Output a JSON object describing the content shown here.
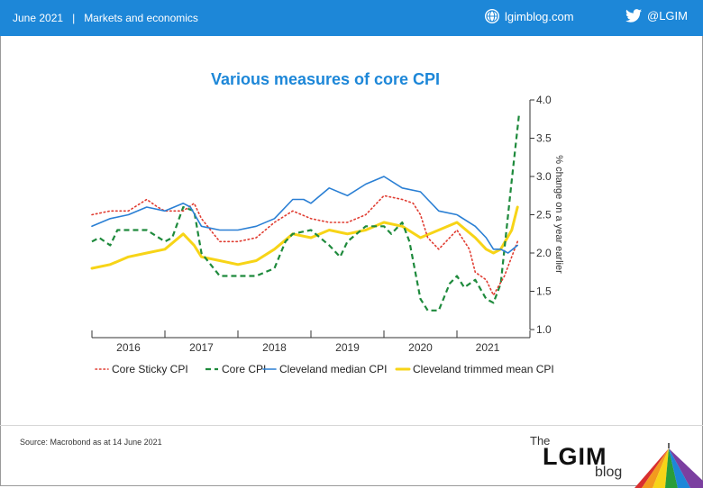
{
  "header": {
    "date": "June 2021",
    "separator": "|",
    "section": "Markets and economics",
    "site": "lgimblog.com",
    "handle": "@LGIM"
  },
  "footer": {
    "source": "Source: Macrobond as at 14 June 2021",
    "logo_the": "The",
    "logo_main": "LGIM",
    "logo_blog": "blog"
  },
  "colors": {
    "header_bg": "#1d87d8",
    "title": "#1d87d8",
    "core_sticky": "#e03c31",
    "core": "#1e8a3c",
    "median": "#2a7fd4",
    "trimmed": "#f7d417"
  },
  "chart_data": {
    "type": "line",
    "title": "Various measures of core CPI",
    "ylabel": "% change on a year earlier",
    "ylim": [
      1.0,
      4.0
    ],
    "yticks": [
      "1.0",
      "1.5",
      "2.0",
      "2.5",
      "3.0",
      "3.5",
      "4.0"
    ],
    "y_axis_position": "right",
    "xlim": [
      2015.5,
      2021.5
    ],
    "year_labels": [
      {
        "label": "2016",
        "x": 2016.0
      },
      {
        "label": "2017",
        "x": 2017.0
      },
      {
        "label": "2018",
        "x": 2018.0
      },
      {
        "label": "2019",
        "x": 2019.0
      },
      {
        "label": "2020",
        "x": 2020.0
      },
      {
        "label": "2021",
        "x": 2020.92
      }
    ],
    "grid": false,
    "legend_position": "bottom",
    "series": [
      {
        "name": "Core Sticky CPI",
        "style": "dotted",
        "x": [
          2015.5,
          2015.75,
          2016.0,
          2016.25,
          2016.4,
          2016.5,
          2016.75,
          2016.9,
          2017.0,
          2017.25,
          2017.5,
          2017.75,
          2018.0,
          2018.25,
          2018.5,
          2018.75,
          2019.0,
          2019.25,
          2019.5,
          2019.75,
          2019.9,
          2020.0,
          2020.1,
          2020.25,
          2020.5,
          2020.67,
          2020.75,
          2020.9,
          2021.0,
          2021.15,
          2021.33
        ],
        "y": [
          2.5,
          2.55,
          2.55,
          2.7,
          2.6,
          2.55,
          2.55,
          2.65,
          2.45,
          2.15,
          2.15,
          2.2,
          2.4,
          2.55,
          2.45,
          2.4,
          2.4,
          2.5,
          2.75,
          2.7,
          2.65,
          2.5,
          2.2,
          2.05,
          2.3,
          2.05,
          1.75,
          1.65,
          1.45,
          1.7,
          2.15
        ]
      },
      {
        "name": "Core CPI",
        "style": "dashed",
        "x": [
          2015.5,
          2015.6,
          2015.75,
          2015.85,
          2016.0,
          2016.25,
          2016.5,
          2016.6,
          2016.75,
          2016.9,
          2017.0,
          2017.25,
          2017.5,
          2017.75,
          2018.0,
          2018.15,
          2018.25,
          2018.5,
          2018.75,
          2018.9,
          2019.0,
          2019.25,
          2019.5,
          2019.6,
          2019.75,
          2019.85,
          2020.0,
          2020.1,
          2020.25,
          2020.4,
          2020.5,
          2020.6,
          2020.75,
          2020.9,
          2021.0,
          2021.1,
          2021.25,
          2021.35
        ],
        "y": [
          2.15,
          2.2,
          2.1,
          2.3,
          2.3,
          2.3,
          2.15,
          2.2,
          2.6,
          2.55,
          2.0,
          1.7,
          1.7,
          1.7,
          1.8,
          2.15,
          2.25,
          2.3,
          2.1,
          1.95,
          2.15,
          2.35,
          2.35,
          2.25,
          2.4,
          2.15,
          1.4,
          1.25,
          1.25,
          1.6,
          1.7,
          1.55,
          1.65,
          1.4,
          1.35,
          1.6,
          2.95,
          3.8
        ]
      },
      {
        "name": "Cleveland median CPI",
        "style": "solid",
        "x": [
          2015.5,
          2015.75,
          2016.0,
          2016.25,
          2016.5,
          2016.75,
          2016.85,
          2017.0,
          2017.25,
          2017.5,
          2017.75,
          2018.0,
          2018.25,
          2018.4,
          2018.5,
          2018.75,
          2019.0,
          2019.25,
          2019.5,
          2019.75,
          2020.0,
          2020.1,
          2020.25,
          2020.5,
          2020.75,
          2020.9,
          2021.0,
          2021.1,
          2021.2,
          2021.33
        ],
        "y": [
          2.35,
          2.45,
          2.5,
          2.6,
          2.55,
          2.65,
          2.6,
          2.35,
          2.3,
          2.3,
          2.35,
          2.45,
          2.7,
          2.7,
          2.65,
          2.85,
          2.75,
          2.9,
          3.0,
          2.85,
          2.8,
          2.7,
          2.55,
          2.5,
          2.35,
          2.2,
          2.05,
          2.05,
          2.0,
          2.1
        ]
      },
      {
        "name": "Cleveland trimmed mean CPI",
        "style": "solid-thick",
        "x": [
          2015.5,
          2015.75,
          2016.0,
          2016.25,
          2016.5,
          2016.75,
          2016.9,
          2017.0,
          2017.25,
          2017.5,
          2017.75,
          2018.0,
          2018.25,
          2018.5,
          2018.75,
          2019.0,
          2019.25,
          2019.5,
          2019.75,
          2020.0,
          2020.25,
          2020.5,
          2020.75,
          2020.9,
          2021.0,
          2021.1,
          2021.25,
          2021.33
        ],
        "y": [
          1.8,
          1.85,
          1.95,
          2.0,
          2.05,
          2.25,
          2.1,
          1.95,
          1.9,
          1.85,
          1.9,
          2.05,
          2.25,
          2.2,
          2.3,
          2.25,
          2.3,
          2.4,
          2.35,
          2.2,
          2.3,
          2.4,
          2.2,
          2.05,
          2.0,
          2.05,
          2.3,
          2.6
        ]
      }
    ]
  }
}
